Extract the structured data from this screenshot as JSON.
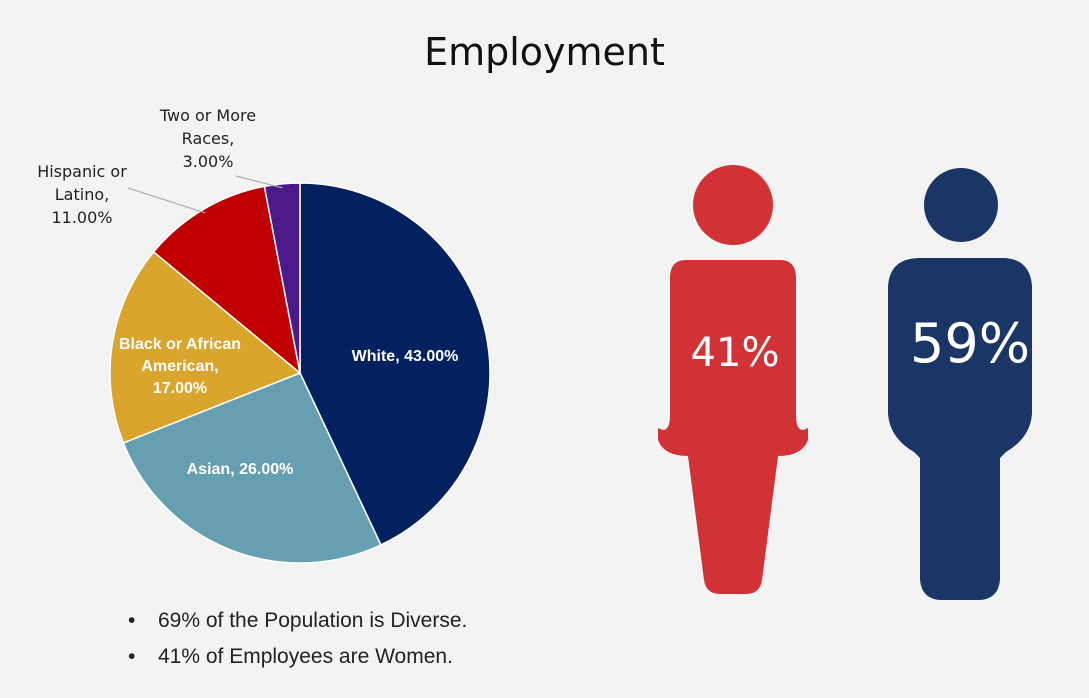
{
  "title": "Employment",
  "chart_data": {
    "type": "pie",
    "title": "",
    "slices": [
      {
        "label": "White",
        "value": 43.0,
        "display": "White, 43.00%",
        "color": "#03215e"
      },
      {
        "label": "Asian",
        "value": 26.0,
        "display": "Asian, 26.00%",
        "color": "#659fb0"
      },
      {
        "label": "Black or African American",
        "value": 17.0,
        "display_lines": [
          "Black or African",
          "American,",
          "17.00%"
        ],
        "color": "#d9a52c"
      },
      {
        "label": "Hispanic or Latino",
        "value": 11.0,
        "display_lines": [
          "Hispanic or",
          "Latino,",
          "11.00%"
        ],
        "color": "#c00000"
      },
      {
        "label": "Two or More Races",
        "value": 3.0,
        "display_lines": [
          "Two or More",
          "Races,",
          "3.00%"
        ],
        "color": "#4a1a8a"
      }
    ]
  },
  "gender": {
    "women": {
      "value": "41%",
      "color": "#d13236"
    },
    "men": {
      "value": "59%",
      "color": "#1b3566"
    }
  },
  "bullets": [
    "69% of the Population is Diverse.",
    "41% of Employees are Women."
  ],
  "bullet_glyph": "•"
}
